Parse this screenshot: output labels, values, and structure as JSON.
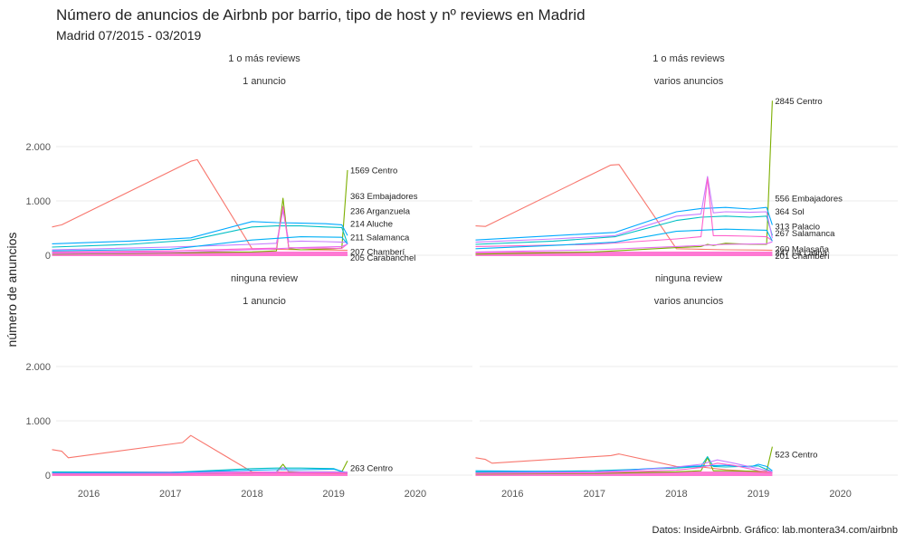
{
  "chart_data": {
    "type": "line",
    "title": "Número de anuncios de Airbnb por barrio, tipo de host y nº reviews en Madrid",
    "subtitle": "Madrid 07/2015 - 03/2019",
    "ylabel": "número de anuncios",
    "caption": "Datos: InsideAirbnb. Gráfico: lab.montera34.com/airbnb",
    "ylim": [
      0,
      2900
    ],
    "xlim": [
      2015.6,
      2020.7
    ],
    "x_ticks": [
      "2016",
      "2017",
      "2018",
      "2019",
      "2020"
    ],
    "x_tick_values": [
      2016,
      2017,
      2018,
      2019,
      2020
    ],
    "y_ticks": [
      "0",
      "1.000",
      "2.000"
    ],
    "y_tick_values": [
      0,
      1000,
      2000
    ],
    "grid": true,
    "legend": "none",
    "series_colors": [
      "#F8766D",
      "#7CAE00",
      "#00BFC4",
      "#00A9FF",
      "#C77CFF",
      "#FF61CC",
      "#00B0F6",
      "#E76BF3"
    ],
    "panels": [
      {
        "strip_top": "1 o más reviews",
        "strip_bottom": "1 anuncio",
        "series": [
          {
            "color": "#F8766D",
            "x": [
              2015.55,
              2015.67,
              2017.25,
              2017.33,
              2018.0,
              2018.3,
              2018.6,
              2019.0,
              2019.17
            ],
            "y": [
              520,
              560,
              1730,
              1760,
              120,
              110,
              100,
              95,
              90
            ]
          },
          {
            "color": "#7CAE00",
            "x": [
              2015.55,
              2017.0,
              2018.0,
              2018.3,
              2018.38,
              2018.45,
              2018.6,
              2018.8,
              2019.0,
              2019.1,
              2019.17
            ],
            "y": [
              20,
              40,
              60,
              80,
              1050,
              120,
              100,
              110,
              120,
              130,
              1569
            ]
          },
          {
            "color": "#00BFC4",
            "x": [
              2015.55,
              2016.5,
              2017.25,
              2018.0,
              2018.3,
              2018.6,
              2018.9,
              2019.1,
              2019.17
            ],
            "y": [
              150,
              200,
              280,
              520,
              540,
              540,
              520,
              510,
              214
            ]
          },
          {
            "color": "#00A9FF",
            "x": [
              2015.55,
              2016.5,
              2017.25,
              2018.0,
              2018.3,
              2018.6,
              2018.9,
              2019.1,
              2019.17
            ],
            "y": [
              210,
              260,
              320,
              620,
              600,
              590,
              580,
              560,
              363
            ]
          },
          {
            "color": "#C77CFF",
            "x": [
              2015.55,
              2017.0,
              2018.0,
              2018.3,
              2018.38,
              2018.45,
              2018.6,
              2018.9,
              2019.1,
              2019.17
            ],
            "y": [
              100,
              150,
              200,
              220,
              820,
              250,
              260,
              250,
              240,
              236
            ]
          },
          {
            "color": "#FF61CC",
            "x": [
              2015.55,
              2017.0,
              2018.0,
              2018.3,
              2018.38,
              2018.45,
              2018.6,
              2018.9,
              2019.1,
              2019.17
            ],
            "y": [
              60,
              80,
              120,
              130,
              900,
              140,
              130,
              130,
              125,
              211
            ]
          },
          {
            "color": "#00B0F6",
            "x": [
              2015.55,
              2017.0,
              2018.0,
              2018.6,
              2019.1,
              2019.17
            ],
            "y": [
              80,
              110,
              280,
              340,
              330,
              207
            ]
          },
          {
            "color": "#E76BF3",
            "x": [
              2015.55,
              2017.0,
              2018.0,
              2018.6,
              2019.1,
              2019.17
            ],
            "y": [
              30,
              50,
              100,
              140,
              160,
              205
            ]
          }
        ],
        "labels": [
          {
            "text": "1569 Centro",
            "y": 1569
          },
          {
            "text": "363 Embajadores",
            "y": 1090
          },
          {
            "text": "236 Arganzuela",
            "y": 820
          },
          {
            "text": "214 Aluche",
            "y": 580
          },
          {
            "text": "211 Salamanca",
            "y": 330
          },
          {
            "text": "207 Chamberí",
            "y": 70
          },
          {
            "text": "205 Carabanchel",
            "y": -40
          }
        ]
      },
      {
        "strip_top": "1 o más reviews",
        "strip_bottom": "varios anuncios",
        "series": [
          {
            "color": "#F8766D",
            "x": [
              2015.55,
              2015.67,
              2017.2,
              2017.3,
              2018.0,
              2018.3,
              2018.6,
              2019.0,
              2019.17
            ],
            "y": [
              540,
              530,
              1660,
              1670,
              120,
              110,
              100,
              95,
              90
            ]
          },
          {
            "color": "#7CAE00",
            "x": [
              2015.55,
              2017.0,
              2018.0,
              2018.3,
              2018.38,
              2018.45,
              2018.6,
              2018.9,
              2019.1,
              2019.17
            ],
            "y": [
              20,
              60,
              140,
              160,
              200,
              180,
              220,
              200,
              200,
              2845
            ]
          },
          {
            "color": "#00A9FF",
            "x": [
              2015.55,
              2016.5,
              2017.25,
              2018.0,
              2018.3,
              2018.6,
              2018.9,
              2019.1,
              2019.17
            ],
            "y": [
              280,
              360,
              420,
              800,
              860,
              880,
              850,
              880,
              556
            ]
          },
          {
            "color": "#00BFC4",
            "x": [
              2015.55,
              2016.5,
              2017.25,
              2018.0,
              2018.3,
              2018.6,
              2018.9,
              2019.1,
              2019.17
            ],
            "y": [
              200,
              260,
              340,
              640,
              700,
              720,
              700,
              720,
              364
            ]
          },
          {
            "color": "#C77CFF",
            "x": [
              2015.55,
              2016.5,
              2017.25,
              2018.0,
              2018.3,
              2018.38,
              2018.45,
              2018.6,
              2018.9,
              2019.1,
              2019.17
            ],
            "y": [
              240,
              300,
              360,
              720,
              760,
              1450,
              780,
              800,
              790,
              800,
              313
            ]
          },
          {
            "color": "#FF61CC",
            "x": [
              2015.55,
              2017.0,
              2018.0,
              2018.3,
              2018.38,
              2018.45,
              2018.6,
              2018.9,
              2019.1,
              2019.17
            ],
            "y": [
              160,
              200,
              300,
              340,
              1420,
              360,
              360,
              350,
              340,
              267
            ]
          },
          {
            "color": "#00B0F6",
            "x": [
              2015.55,
              2016.5,
              2017.25,
              2018.0,
              2018.6,
              2019.1,
              2019.17
            ],
            "y": [
              120,
              180,
              240,
              440,
              480,
              460,
              260
            ]
          },
          {
            "color": "#E76BF3",
            "x": [
              2015.55,
              2017.0,
              2018.0,
              2018.6,
              2019.1,
              2019.17
            ],
            "y": [
              60,
              100,
              160,
              200,
              210,
              247
            ]
          }
        ],
        "labels": [
          {
            "text": "2845 Centro",
            "y": 2845
          },
          {
            "text": "556 Embajadores",
            "y": 1050
          },
          {
            "text": "364 Sol",
            "y": 810
          },
          {
            "text": "313 Palacio",
            "y": 530
          },
          {
            "text": "267 Salamanca",
            "y": 410
          },
          {
            "text": "260 Malasaña",
            "y": 120
          },
          {
            "text": "247 La Latina",
            "y": 50
          },
          {
            "text": "201 Chamberí",
            "y": -10
          }
        ]
      },
      {
        "strip_top": "ninguna review",
        "strip_bottom": "1 anuncio",
        "series": [
          {
            "color": "#F8766D",
            "x": [
              2015.55,
              2015.67,
              2015.75,
              2017.15,
              2017.25,
              2018.0,
              2018.3,
              2018.6,
              2019.0,
              2019.17
            ],
            "y": [
              470,
              440,
              320,
              600,
              730,
              60,
              50,
              40,
              35,
              30
            ]
          },
          {
            "color": "#7CAE00",
            "x": [
              2015.55,
              2017.0,
              2018.0,
              2018.3,
              2018.38,
              2018.45,
              2018.6,
              2019.0,
              2019.1,
              2019.17
            ],
            "y": [
              20,
              20,
              40,
              60,
              200,
              60,
              60,
              60,
              60,
              263
            ]
          },
          {
            "color": "#00BFC4",
            "x": [
              2015.55,
              2017.0,
              2018.0,
              2018.3,
              2018.6,
              2019.0,
              2019.17
            ],
            "y": [
              60,
              50,
              120,
              130,
              130,
              120,
              30
            ]
          },
          {
            "color": "#00A9FF",
            "x": [
              2015.55,
              2017.0,
              2018.0,
              2018.3,
              2018.6,
              2019.0,
              2019.17
            ],
            "y": [
              40,
              50,
              90,
              100,
              100,
              110,
              40
            ]
          },
          {
            "color": "#C77CFF",
            "x": [
              2015.55,
              2017.0,
              2018.0,
              2018.3,
              2018.38,
              2018.45,
              2018.6,
              2019.0,
              2019.17
            ],
            "y": [
              30,
              30,
              50,
              60,
              140,
              70,
              60,
              60,
              50
            ]
          },
          {
            "color": "#FF61CC",
            "x": [
              2015.55,
              2017.0,
              2018.0,
              2018.6,
              2019.0,
              2019.17
            ],
            "y": [
              20,
              20,
              40,
              40,
              40,
              35
            ]
          }
        ],
        "labels": [
          {
            "text": "263 Centro",
            "y": 130
          }
        ]
      },
      {
        "strip_top": "ninguna review",
        "strip_bottom": "varios anuncios",
        "series": [
          {
            "color": "#F8766D",
            "x": [
              2015.55,
              2015.67,
              2015.75,
              2017.2,
              2017.3,
              2018.0,
              2018.3,
              2018.6,
              2019.0,
              2019.17
            ],
            "y": [
              320,
              290,
              220,
              360,
              390,
              160,
              150,
              100,
              60,
              40
            ]
          },
          {
            "color": "#7CAE00",
            "x": [
              2015.55,
              2017.0,
              2018.0,
              2018.3,
              2018.38,
              2018.45,
              2018.6,
              2019.0,
              2019.1,
              2019.17
            ],
            "y": [
              20,
              30,
              60,
              80,
              320,
              80,
              80,
              70,
              70,
              523
            ]
          },
          {
            "color": "#00BFC4",
            "x": [
              2015.55,
              2017.0,
              2018.0,
              2018.3,
              2018.38,
              2018.45,
              2018.6,
              2019.0,
              2019.17
            ],
            "y": [
              60,
              80,
              130,
              160,
              340,
              160,
              150,
              170,
              60
            ]
          },
          {
            "color": "#00A9FF",
            "x": [
              2015.55,
              2017.0,
              2018.0,
              2018.3,
              2018.6,
              2018.9,
              2019.0,
              2019.1,
              2019.17
            ],
            "y": [
              80,
              60,
              150,
              170,
              180,
              150,
              200,
              160,
              80
            ]
          },
          {
            "color": "#C77CFF",
            "x": [
              2015.55,
              2017.0,
              2017.5,
              2018.0,
              2018.3,
              2018.5,
              2018.7,
              2019.0,
              2019.17
            ],
            "y": [
              40,
              60,
              90,
              150,
              200,
              280,
              220,
              120,
              60
            ]
          },
          {
            "color": "#FF61CC",
            "x": [
              2015.55,
              2017.0,
              2018.0,
              2018.3,
              2018.5,
              2018.7,
              2019.0,
              2019.17
            ],
            "y": [
              30,
              40,
              90,
              140,
              220,
              180,
              80,
              40
            ]
          }
        ],
        "labels": [
          {
            "text": "523 Centro",
            "y": 380
          }
        ]
      }
    ]
  }
}
